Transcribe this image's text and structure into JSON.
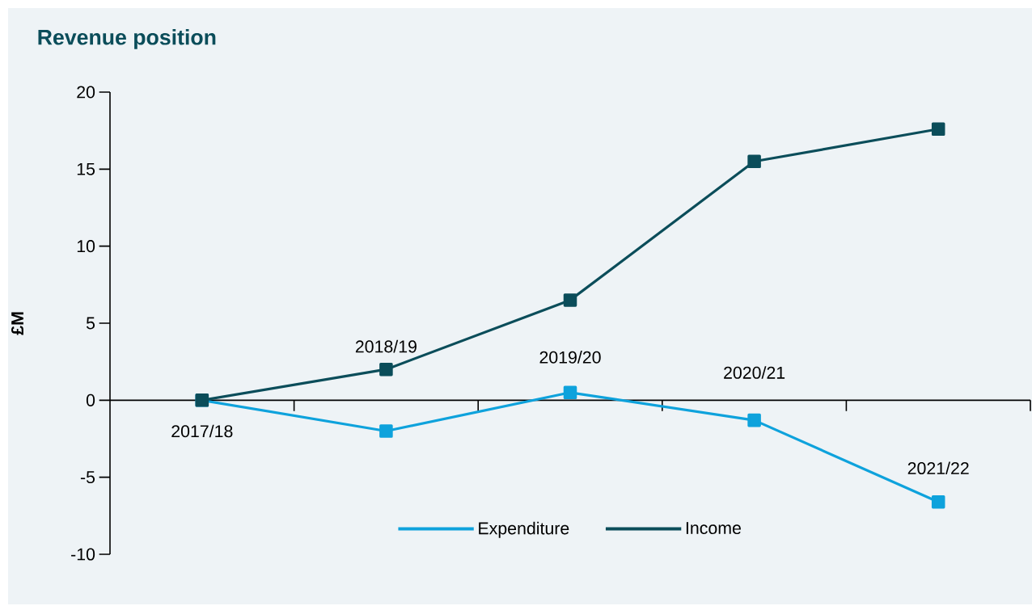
{
  "chart_data": {
    "type": "line",
    "title": "Revenue position",
    "ylabel": "£M",
    "categories": [
      "2017/18",
      "2018/19",
      "2019/20",
      "2020/21",
      "2021/22"
    ],
    "series": [
      {
        "name": "Expenditure",
        "color": "#0ea2dc",
        "values": [
          0,
          -2,
          0.5,
          -1.3,
          -6.6
        ]
      },
      {
        "name": "Income",
        "color": "#0b4d5a",
        "values": [
          0,
          2,
          6.5,
          15.5,
          17.6
        ]
      }
    ],
    "ylim": [
      -10,
      20
    ],
    "yticks": [
      -10,
      -5,
      0,
      5,
      10,
      15,
      20
    ],
    "legend": "bottom",
    "marker": "square",
    "line_style": "solid"
  }
}
